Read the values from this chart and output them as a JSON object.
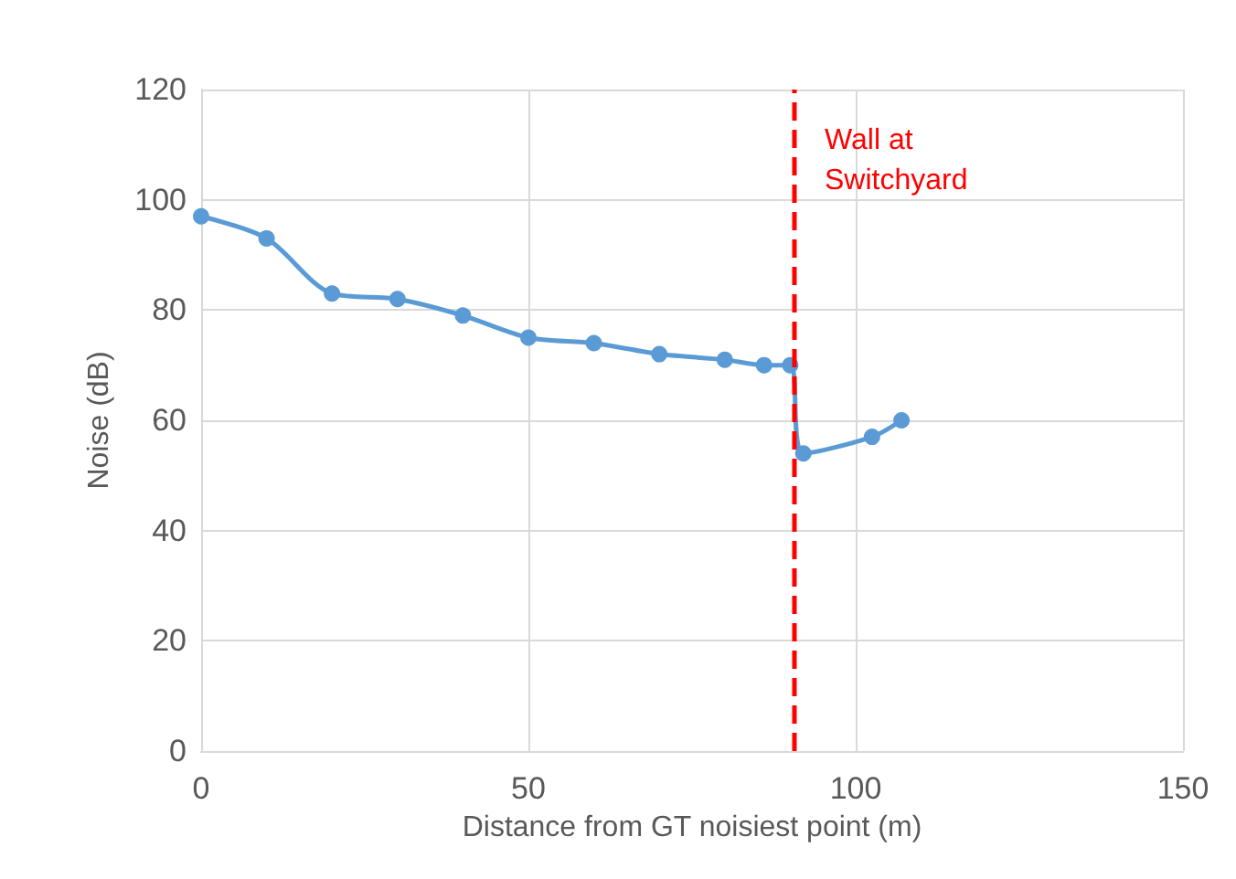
{
  "chart_data": {
    "type": "line",
    "xlabel": "Distance from GT noisiest point (m)",
    "ylabel": "Noise (dB)",
    "x": [
      0,
      10,
      20,
      30,
      40,
      50,
      60,
      70,
      80,
      86,
      90,
      92,
      102.5,
      107
    ],
    "series": [
      {
        "color": "#5b9bd5",
        "values": [
          97,
          93,
          83,
          82,
          79,
          75,
          74,
          72,
          71,
          70,
          70,
          54,
          57,
          60
        ]
      }
    ],
    "xlim": [
      0,
      150
    ],
    "xticks": [
      0,
      50,
      100,
      150
    ],
    "ylim": [
      0,
      120
    ],
    "yticks": [
      0,
      20,
      40,
      60,
      80,
      100,
      120
    ],
    "grid": true,
    "marker": "circle",
    "line_style": "solid",
    "ref_lines": [
      {
        "axis": "x",
        "value": 90.5,
        "label": "Wall at Switchyard",
        "color": "#ff0000",
        "line_style": "dashed"
      }
    ]
  }
}
